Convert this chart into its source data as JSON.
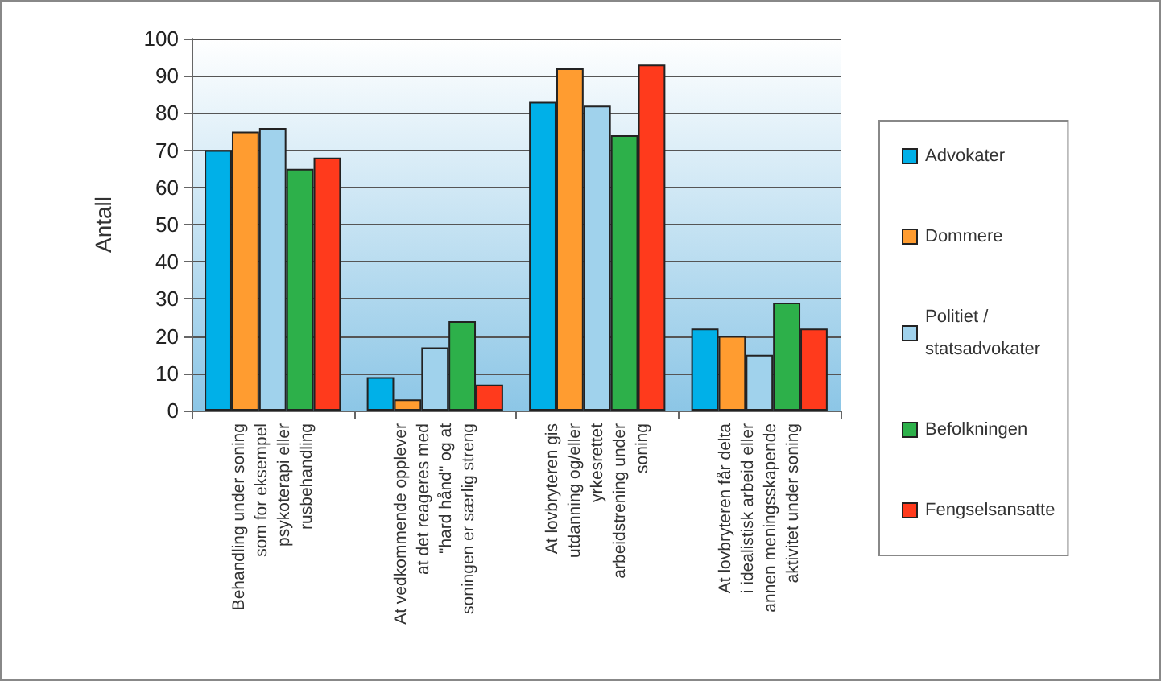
{
  "chart_data": {
    "type": "bar",
    "ylabel": "Antall",
    "categories": [
      "Behandling under soning\nsom for eksempel\npsykoterapi eller\nrusbehandling",
      "At vedkommende opplever\nat det reageres med\n\"hard hånd\" og at\nsoningen er særlig streng",
      "At lovbryteren gis\nutdanning og/eller\nyrkesrettet\narbeidstrening under\nsoning",
      "At lovbryteren får delta\ni idealistisk arbeid eller\nannen meningsskapende\naktivitet under soning"
    ],
    "series": [
      {
        "name": "Advokater",
        "color": "#00b0e8",
        "values": [
          70,
          9,
          83,
          22
        ]
      },
      {
        "name": "Dommere",
        "color": "#ff9c30",
        "values": [
          75,
          3,
          92,
          20
        ]
      },
      {
        "name": "Politiet /\nstatsadvokater",
        "color": "#a0d2ec",
        "values": [
          76,
          17,
          82,
          15
        ]
      },
      {
        "name": "Befolkningen",
        "color": "#2db04a",
        "values": [
          65,
          24,
          74,
          29
        ]
      },
      {
        "name": "Fengselsansatte",
        "color": "#ff3a1c",
        "values": [
          68,
          7,
          93,
          22
        ]
      }
    ],
    "ylim": [
      0,
      100
    ],
    "yticks": [
      0,
      10,
      20,
      30,
      40,
      50,
      60,
      70,
      80,
      90,
      100
    ],
    "grid": "y",
    "legend": "right"
  }
}
